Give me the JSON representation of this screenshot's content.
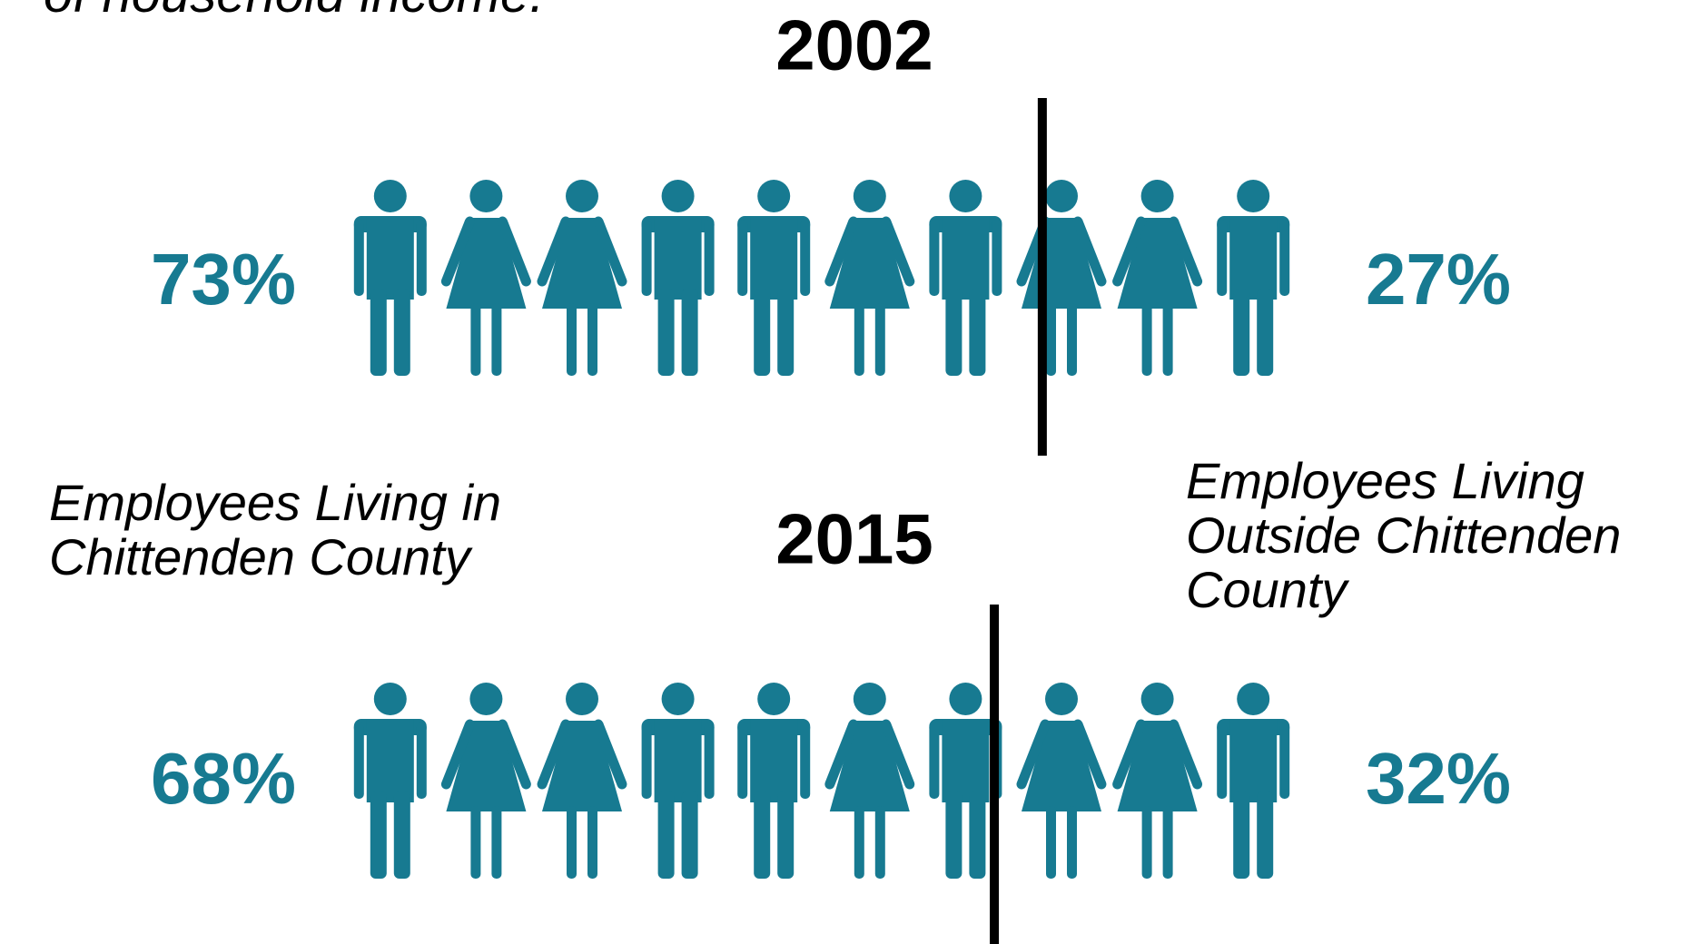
{
  "caption": "of household income.",
  "legend": [
    "Employees Living in Chittenden County",
    "Employees Living Outside Chittenden County"
  ],
  "chart_data": [
    {
      "type": "pictogram",
      "title": "2002",
      "values": [
        73,
        27
      ],
      "value_labels": [
        "73%",
        "27%"
      ],
      "color": "#177a91",
      "xlim": [
        0,
        100
      ]
    },
    {
      "type": "pictogram",
      "title": "2015",
      "values": [
        68,
        32
      ],
      "value_labels": [
        "68%",
        "32%"
      ],
      "color": "#177a91",
      "xlim": [
        0,
        100
      ]
    }
  ]
}
